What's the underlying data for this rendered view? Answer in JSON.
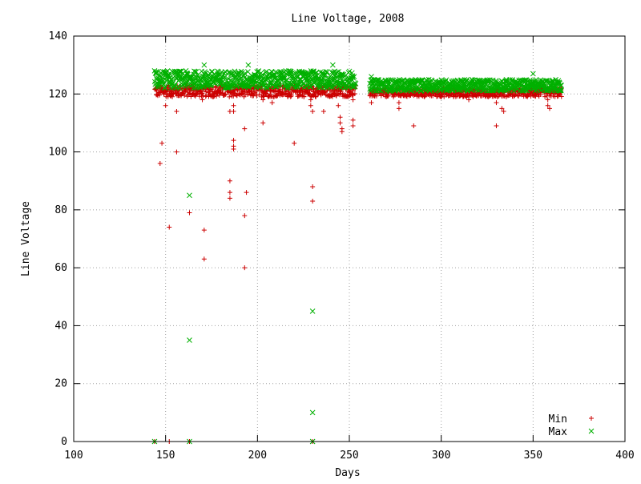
{
  "chart_data": {
    "type": "scatter",
    "title": "Line Voltage, 2008",
    "xlabel": "Days",
    "ylabel": "Line Voltage",
    "xlim": [
      100,
      400
    ],
    "ylim": [
      0,
      140
    ],
    "x_ticks": [
      100,
      150,
      200,
      250,
      300,
      350,
      400
    ],
    "y_ticks": [
      0,
      20,
      40,
      60,
      80,
      100,
      120,
      140
    ],
    "grid": true,
    "legend_position": "bottom-right",
    "series": [
      {
        "name": "Min",
        "marker": "+",
        "color": "#cc0000",
        "dense_bands": [
          {
            "x_start": 144,
            "x_end": 253,
            "y_low": 119,
            "y_high": 123
          },
          {
            "x_start": 261,
            "x_end": 365,
            "y_low": 119,
            "y_high": 122
          }
        ],
        "points": [
          {
            "x": 144,
            "y": 0
          },
          {
            "x": 147,
            "y": 96
          },
          {
            "x": 148,
            "y": 103
          },
          {
            "x": 150,
            "y": 116
          },
          {
            "x": 152,
            "y": 74
          },
          {
            "x": 152,
            "y": 0
          },
          {
            "x": 156,
            "y": 114
          },
          {
            "x": 156,
            "y": 100
          },
          {
            "x": 163,
            "y": 79
          },
          {
            "x": 163,
            "y": 0
          },
          {
            "x": 171,
            "y": 73
          },
          {
            "x": 171,
            "y": 63
          },
          {
            "x": 170,
            "y": 118
          },
          {
            "x": 185,
            "y": 114
          },
          {
            "x": 185,
            "y": 90
          },
          {
            "x": 185,
            "y": 86
          },
          {
            "x": 185,
            "y": 84
          },
          {
            "x": 187,
            "y": 114
          },
          {
            "x": 187,
            "y": 116
          },
          {
            "x": 187,
            "y": 104
          },
          {
            "x": 187,
            "y": 102
          },
          {
            "x": 187,
            "y": 101
          },
          {
            "x": 193,
            "y": 108
          },
          {
            "x": 194,
            "y": 86
          },
          {
            "x": 193,
            "y": 78
          },
          {
            "x": 193,
            "y": 60
          },
          {
            "x": 203,
            "y": 118
          },
          {
            "x": 203,
            "y": 110
          },
          {
            "x": 220,
            "y": 103
          },
          {
            "x": 208,
            "y": 117
          },
          {
            "x": 229,
            "y": 118
          },
          {
            "x": 229,
            "y": 116
          },
          {
            "x": 230,
            "y": 114
          },
          {
            "x": 230,
            "y": 88
          },
          {
            "x": 230,
            "y": 83
          },
          {
            "x": 230,
            "y": 0
          },
          {
            "x": 236,
            "y": 114
          },
          {
            "x": 244,
            "y": 120
          },
          {
            "x": 244,
            "y": 116
          },
          {
            "x": 245,
            "y": 112
          },
          {
            "x": 245,
            "y": 110
          },
          {
            "x": 246,
            "y": 108
          },
          {
            "x": 246,
            "y": 107
          },
          {
            "x": 252,
            "y": 111
          },
          {
            "x": 252,
            "y": 109
          },
          {
            "x": 252,
            "y": 118
          },
          {
            "x": 262,
            "y": 117
          },
          {
            "x": 277,
            "y": 117
          },
          {
            "x": 277,
            "y": 115
          },
          {
            "x": 285,
            "y": 109
          },
          {
            "x": 315,
            "y": 118
          },
          {
            "x": 330,
            "y": 117
          },
          {
            "x": 330,
            "y": 109
          },
          {
            "x": 333,
            "y": 115
          },
          {
            "x": 334,
            "y": 114
          },
          {
            "x": 358,
            "y": 118
          },
          {
            "x": 358,
            "y": 116
          },
          {
            "x": 359,
            "y": 115
          }
        ]
      },
      {
        "name": "Max",
        "marker": "x",
        "color": "#00b000",
        "dense_bands": [
          {
            "x_start": 144,
            "x_end": 253,
            "y_low": 122,
            "y_high": 128
          },
          {
            "x_start": 261,
            "x_end": 365,
            "y_low": 121,
            "y_high": 125
          }
        ],
        "points": [
          {
            "x": 144,
            "y": 128
          },
          {
            "x": 171,
            "y": 130
          },
          {
            "x": 195,
            "y": 130
          },
          {
            "x": 241,
            "y": 130
          },
          {
            "x": 262,
            "y": 126
          },
          {
            "x": 350,
            "y": 127
          },
          {
            "x": 163,
            "y": 85
          },
          {
            "x": 163,
            "y": 35
          },
          {
            "x": 230,
            "y": 45
          },
          {
            "x": 230,
            "y": 10
          },
          {
            "x": 144,
            "y": 0
          },
          {
            "x": 163,
            "y": 0
          },
          {
            "x": 230,
            "y": 0
          }
        ]
      }
    ]
  }
}
